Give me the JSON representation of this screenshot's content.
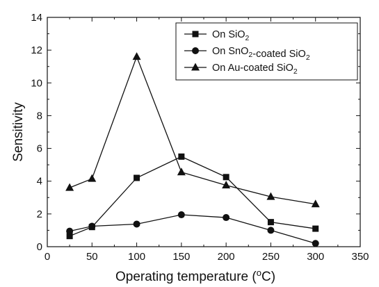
{
  "chart_data": {
    "type": "line",
    "title": "",
    "xlabel": "Operating temperature (oC)",
    "xlabel_parts": {
      "prefix": "Operating temperature (",
      "sup": "o",
      "suffix": "C)"
    },
    "ylabel": "Sensitivity",
    "xlim": [
      0,
      350
    ],
    "ylim": [
      0,
      14
    ],
    "xticks": [
      0,
      50,
      100,
      150,
      200,
      250,
      300,
      350
    ],
    "yticks": [
      0,
      2,
      4,
      6,
      8,
      10,
      12,
      14
    ],
    "grid": false,
    "legend_position": "top-right",
    "x": [
      25,
      50,
      100,
      150,
      200,
      250,
      300
    ],
    "series": [
      {
        "name": "On SiO2",
        "name_parts": [
          {
            "t": "On SiO"
          },
          {
            "t": "2",
            "sub": true
          }
        ],
        "marker": "square",
        "values": [
          0.65,
          1.2,
          4.2,
          5.5,
          4.25,
          1.5,
          1.1
        ]
      },
      {
        "name": "On SnO2-coated SiO2",
        "name_parts": [
          {
            "t": "On SnO"
          },
          {
            "t": "2",
            "sub": true
          },
          {
            "t": "-coated SiO"
          },
          {
            "t": "2",
            "sub": true
          }
        ],
        "marker": "circle",
        "values": [
          0.95,
          1.25,
          1.38,
          1.95,
          1.78,
          1.0,
          0.2
        ]
      },
      {
        "name": "On Au-coated SiO2",
        "name_parts": [
          {
            "t": "On Au-coated SiO"
          },
          {
            "t": "2",
            "sub": true
          }
        ],
        "marker": "triangle",
        "values": [
          3.6,
          4.15,
          11.6,
          4.55,
          3.75,
          3.05,
          2.6
        ]
      }
    ],
    "colors": {
      "line": "#111111",
      "background": "#ffffff"
    }
  }
}
